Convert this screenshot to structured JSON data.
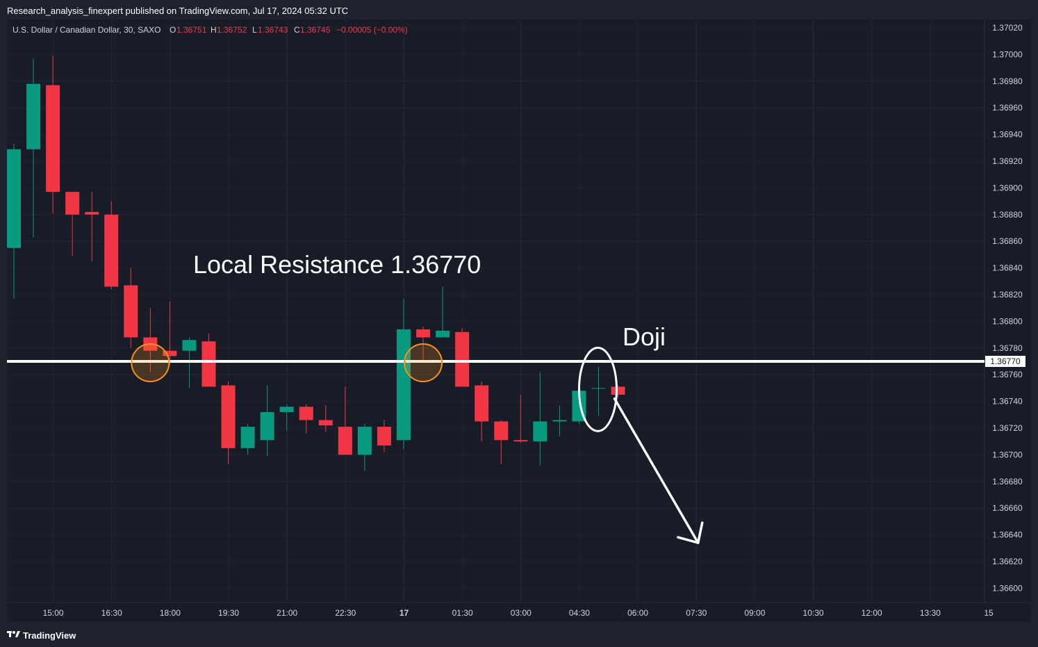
{
  "header": {
    "publisher": "Research_analysis_finexpert published on TradingView.com, Jul 17, 2024 05:32 UTC"
  },
  "legend": {
    "symbol": "U.S. Dollar / Canadian Dollar, 30, SAXO",
    "o_label": "O",
    "o_value": "1.36751",
    "h_label": "H",
    "h_value": "1.36752",
    "l_label": "L",
    "l_value": "1.36743",
    "c_label": "C",
    "c_value": "1.36745",
    "change": "−0.00005 (−0.00%)"
  },
  "footer": {
    "brand": "TradingView"
  },
  "colors": {
    "up": "#089981",
    "down": "#f23645",
    "bg": "#181c27",
    "grid": "#2a2e39",
    "axis_text": "#d1d4dc",
    "resistance": "#ffffff",
    "highlight": "#f7931a"
  },
  "chart_data": {
    "type": "candlestick",
    "interval": "30",
    "ylim": [
      1.3659,
      1.3703
    ],
    "y_ticks": [
      "1.37020",
      "1.37000",
      "1.36980",
      "1.36960",
      "1.36940",
      "1.36920",
      "1.36900",
      "1.36880",
      "1.36860",
      "1.36840",
      "1.36820",
      "1.36800",
      "1.36780",
      "1.36760",
      "1.36740",
      "1.36720",
      "1.36700",
      "1.36680",
      "1.36660",
      "1.36640",
      "1.36620",
      "1.36600"
    ],
    "x_ticks": [
      {
        "label": "15:00",
        "bar": 2
      },
      {
        "label": "16:30",
        "bar": 5
      },
      {
        "label": "18:00",
        "bar": 8
      },
      {
        "label": "19:30",
        "bar": 11
      },
      {
        "label": "21:00",
        "bar": 14
      },
      {
        "label": "22:30",
        "bar": 17
      },
      {
        "label": "17",
        "bar": 20,
        "bold": true
      },
      {
        "label": "01:30",
        "bar": 23
      },
      {
        "label": "03:00",
        "bar": 26
      },
      {
        "label": "04:30",
        "bar": 29
      },
      {
        "label": "06:00",
        "bar": 32
      },
      {
        "label": "07:30",
        "bar": 35
      },
      {
        "label": "09:00",
        "bar": 38
      },
      {
        "label": "10:30",
        "bar": 41
      },
      {
        "label": "12:00",
        "bar": 44
      },
      {
        "label": "13:30",
        "bar": 47
      },
      {
        "label": "15",
        "bar": 50
      }
    ],
    "candles": [
      {
        "o": 1.36855,
        "h": 1.36933,
        "l": 1.36817,
        "c": 1.36929
      },
      {
        "o": 1.36929,
        "h": 1.36997,
        "l": 1.36863,
        "c": 1.36978
      },
      {
        "o": 1.36977,
        "h": 1.36999,
        "l": 1.36881,
        "c": 1.36897
      },
      {
        "o": 1.36897,
        "h": 1.36897,
        "l": 1.36849,
        "c": 1.3688
      },
      {
        "o": 1.36882,
        "h": 1.36897,
        "l": 1.36845,
        "c": 1.3688
      },
      {
        "o": 1.3688,
        "h": 1.3689,
        "l": 1.36824,
        "c": 1.36826
      },
      {
        "o": 1.36827,
        "h": 1.3684,
        "l": 1.3678,
        "c": 1.36788
      },
      {
        "o": 1.36788,
        "h": 1.3681,
        "l": 1.36762,
        "c": 1.36778
      },
      {
        "o": 1.36778,
        "h": 1.36815,
        "l": 1.36767,
        "c": 1.36774
      },
      {
        "o": 1.36778,
        "h": 1.36788,
        "l": 1.3675,
        "c": 1.36786
      },
      {
        "o": 1.36785,
        "h": 1.36791,
        "l": 1.36754,
        "c": 1.36751
      },
      {
        "o": 1.36752,
        "h": 1.36755,
        "l": 1.36693,
        "c": 1.36705
      },
      {
        "o": 1.36705,
        "h": 1.36723,
        "l": 1.367,
        "c": 1.36721
      },
      {
        "o": 1.36711,
        "h": 1.36752,
        "l": 1.36699,
        "c": 1.36732
      },
      {
        "o": 1.36732,
        "h": 1.36738,
        "l": 1.36718,
        "c": 1.36736
      },
      {
        "o": 1.36736,
        "h": 1.36738,
        "l": 1.36716,
        "c": 1.36726
      },
      {
        "o": 1.36726,
        "h": 1.36737,
        "l": 1.36717,
        "c": 1.36722
      },
      {
        "o": 1.36721,
        "h": 1.36751,
        "l": 1.367,
        "c": 1.367
      },
      {
        "o": 1.367,
        "h": 1.36723,
        "l": 1.36688,
        "c": 1.36721
      },
      {
        "o": 1.36721,
        "h": 1.36726,
        "l": 1.36702,
        "c": 1.36707
      },
      {
        "o": 1.36711,
        "h": 1.36817,
        "l": 1.36704,
        "c": 1.36794
      },
      {
        "o": 1.36794,
        "h": 1.36796,
        "l": 1.3677,
        "c": 1.36788
      },
      {
        "o": 1.36788,
        "h": 1.36826,
        "l": 1.36788,
        "c": 1.36793
      },
      {
        "o": 1.36792,
        "h": 1.36795,
        "l": 1.36751,
        "c": 1.36751
      },
      {
        "o": 1.36752,
        "h": 1.36755,
        "l": 1.3671,
        "c": 1.36725
      },
      {
        "o": 1.36725,
        "h": 1.36726,
        "l": 1.36693,
        "c": 1.36711
      },
      {
        "o": 1.36711,
        "h": 1.36745,
        "l": 1.36709,
        "c": 1.3671
      },
      {
        "o": 1.3671,
        "h": 1.36762,
        "l": 1.36692,
        "c": 1.36725
      },
      {
        "o": 1.36725,
        "h": 1.36737,
        "l": 1.36714,
        "c": 1.36726
      },
      {
        "o": 1.36725,
        "h": 1.36749,
        "l": 1.36723,
        "c": 1.36748
      },
      {
        "o": 1.3675,
        "h": 1.36766,
        "l": 1.36729,
        "c": 1.3675
      },
      {
        "o": 1.36751,
        "h": 1.36752,
        "l": 1.36743,
        "c": 1.36745
      }
    ],
    "resistance": {
      "price": 1.3677,
      "label": "1.36770"
    },
    "annotations": {
      "resistance_text": "Local Resistance 1.36770",
      "doji_text": "Doji"
    },
    "highlight_bars": [
      7,
      21
    ],
    "doji_bar": 30,
    "arrow": {
      "from_bar": 31,
      "from_price": 1.36742,
      "to_bar": 35,
      "to_price": 1.36634
    }
  }
}
